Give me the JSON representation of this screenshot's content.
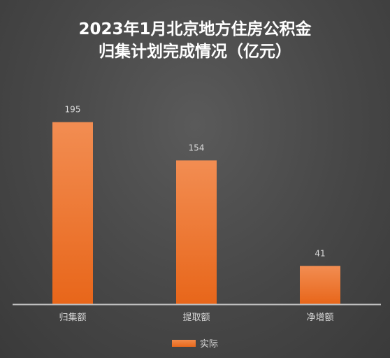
{
  "title_line1": "2023年1月北京地方住房公积金",
  "title_line2": "归集计划完成情况（亿元）",
  "chart_data": {
    "type": "bar",
    "categories": [
      "归集额",
      "提取额",
      "净增额"
    ],
    "series": [
      {
        "name": "实际",
        "values": [
          195,
          154,
          41
        ],
        "color": "#ee7a35"
      }
    ],
    "ylim": [
      0,
      200
    ],
    "data_labels": true,
    "grid": false,
    "legend": "bottom"
  }
}
